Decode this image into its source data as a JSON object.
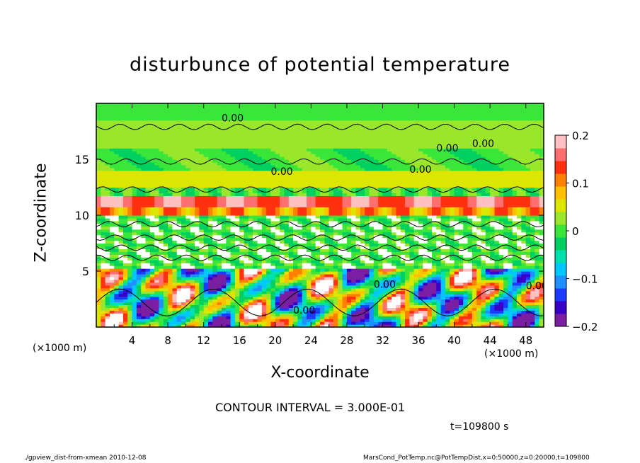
{
  "chart_data": {
    "type": "heatmap",
    "title": "disturbunce of potential temperature",
    "xlabel": "X-coordinate",
    "ylabel": "Z-coordinate",
    "x_unit": "(×1000 m)",
    "y_unit": "(×1000 m)",
    "xlim": [
      0,
      50
    ],
    "ylim": [
      0,
      20
    ],
    "x_ticks": [
      "4",
      "8",
      "12",
      "16",
      "20",
      "24",
      "28",
      "32",
      "36",
      "40",
      "44",
      "48"
    ],
    "y_ticks": [
      "5",
      "10",
      "15"
    ],
    "colorbar": {
      "range": [
        -0.2,
        0.2
      ],
      "ticks": [
        "0.2",
        "0.1",
        "0",
        "−0.1",
        "−0.2"
      ],
      "colors": [
        "#7b1fa2",
        "#3a00c8",
        "#1a3cff",
        "#1e90ff",
        "#00c8ff",
        "#00e0b0",
        "#00d060",
        "#39e639",
        "#9ae62a",
        "#dde600",
        "#ffc000",
        "#ff8000",
        "#ff3010",
        "#ff6f6f",
        "#ffc0c0"
      ],
      "placement": "right"
    },
    "contour_labels": [
      "0.00",
      "0.00",
      "0.00",
      "0.00",
      "0.00",
      "0.00",
      "0.00",
      "0.00"
    ],
    "contour_interval": "CONTOUR INTERVAL = 3.000E-01",
    "time": "t=109800 s",
    "grid": false
  },
  "footer": {
    "left": "./gpview_dist-from-xmean  2010-12-08",
    "right": "MarsCond_PotTemp.nc@PotTempDist,x=0:50000,z=0:20000,t=109800"
  }
}
